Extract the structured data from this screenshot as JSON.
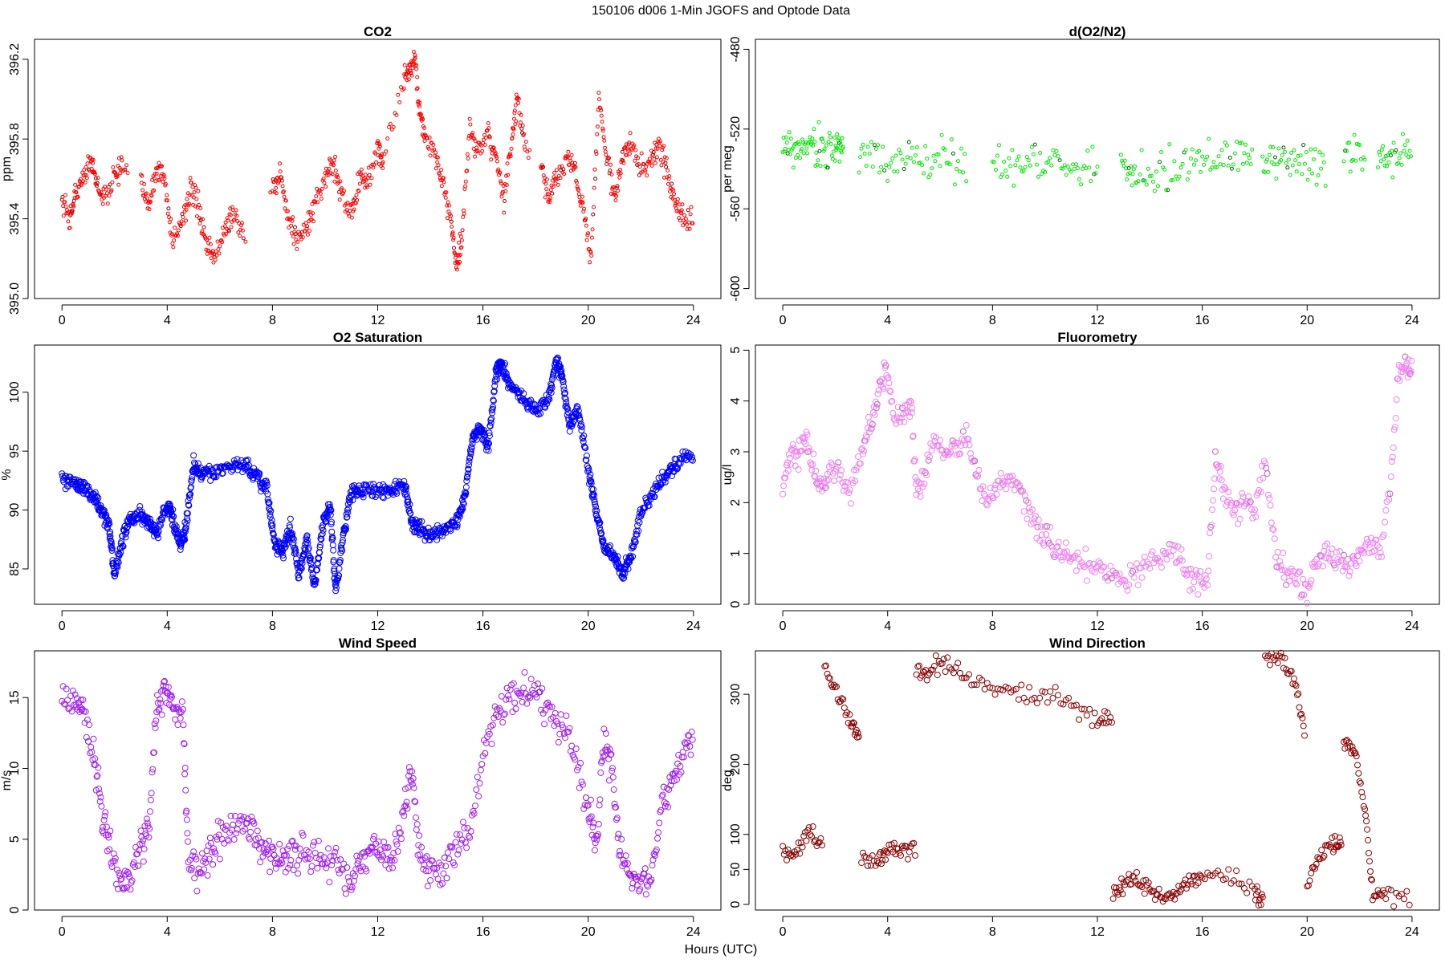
{
  "figure_title": "150106   d006   1-Min  JGOFS and Optode Data",
  "xlabel": "Hours (UTC)",
  "chart_data": [
    {
      "type": "scatter",
      "title": "CO2",
      "ylabel": "ppm",
      "xlim": [
        0,
        24
      ],
      "ylim": [
        395.0,
        396.3
      ],
      "xticks": [
        0,
        4,
        8,
        12,
        16,
        20,
        24
      ],
      "yticks": [
        395.0,
        395.4,
        395.8,
        396.2
      ],
      "ytick_labels": [
        "395.0",
        "395.4",
        "395.8",
        "396.2"
      ],
      "color": "#ff0000",
      "accent_color": "#8b0000",
      "marker_size": 2,
      "noise": 0.03,
      "gaps": [
        [
          2.5,
          3.0
        ],
        [
          7.0,
          7.9
        ],
        [
          17.8,
          18.2
        ]
      ],
      "x": [
        0,
        0.3,
        0.5,
        0.8,
        1.1,
        1.3,
        1.6,
        2.0,
        2.3,
        3.0,
        3.3,
        3.6,
        3.9,
        4.2,
        4.6,
        4.9,
        5.2,
        5.5,
        5.8,
        6.2,
        6.5,
        6.9,
        8.0,
        8.3,
        8.6,
        8.9,
        9.3,
        9.6,
        10.0,
        10.3,
        10.6,
        11.0,
        11.3,
        11.6,
        12.0,
        12.2,
        13.0,
        13.2,
        13.4,
        13.6,
        13.8,
        14.2,
        14.5,
        14.8,
        15.0,
        15.2,
        15.5,
        15.8,
        16.2,
        16.5,
        16.8,
        17.1,
        17.3,
        17.6,
        18.2,
        18.5,
        18.8,
        19.2,
        19.5,
        19.8,
        20.1,
        20.4,
        20.7,
        21.0,
        21.3,
        21.6,
        22.0,
        22.4,
        22.7,
        23.0,
        23.3,
        23.6,
        24.0
      ],
      "y": [
        395.5,
        395.4,
        395.52,
        395.6,
        395.72,
        395.58,
        395.5,
        395.62,
        395.65,
        395.55,
        395.48,
        395.65,
        395.6,
        395.28,
        395.4,
        395.55,
        395.45,
        395.25,
        395.2,
        395.35,
        395.45,
        395.3,
        395.55,
        395.62,
        395.4,
        395.3,
        395.35,
        395.45,
        395.62,
        395.68,
        395.55,
        395.42,
        395.6,
        395.58,
        395.75,
        395.7,
        396.1,
        396.15,
        396.2,
        395.95,
        395.8,
        395.72,
        395.55,
        395.4,
        395.15,
        395.3,
        395.85,
        395.75,
        395.82,
        395.7,
        395.5,
        395.8,
        396.0,
        395.75,
        395.65,
        395.5,
        395.6,
        395.72,
        395.65,
        395.45,
        395.2,
        396.0,
        395.72,
        395.5,
        395.7,
        395.78,
        395.65,
        395.7,
        395.78,
        395.62,
        395.5,
        395.4,
        395.38
      ],
      "points_per_segment": 14
    },
    {
      "type": "scatter",
      "title": "d(O2/N2)",
      "ylabel": "per meg",
      "xlim": [
        0,
        24
      ],
      "ylim": [
        -605,
        -475
      ],
      "xticks": [
        0,
        4,
        8,
        12,
        16,
        20,
        24
      ],
      "yticks": [
        -600,
        -560,
        -520,
        -480
      ],
      "ytick_labels": [
        "-600",
        "-560",
        "-520",
        "-480"
      ],
      "color": "#00e600",
      "accent_color": "#006400",
      "marker_size": 2,
      "noise": 5,
      "gaps": [
        [
          2.3,
          2.9
        ],
        [
          7.0,
          8.0
        ],
        [
          12.0,
          12.9
        ],
        [
          17.9,
          18.3
        ],
        [
          20.7,
          21.4
        ],
        [
          22.2,
          22.7
        ]
      ],
      "x": [
        0,
        0.5,
        1.0,
        1.5,
        2.0,
        2.3,
        3.0,
        4.0,
        5.0,
        6.0,
        7.0,
        8.0,
        9.0,
        10.0,
        11.0,
        12.0,
        12.9,
        13.5,
        14.5,
        15.5,
        16.5,
        17.5,
        18.3,
        19.0,
        19.8,
        20.7,
        21.4,
        22.2,
        22.7,
        23.3,
        24.0
      ],
      "y": [
        -528,
        -530,
        -527,
        -531,
        -529,
        -531,
        -533,
        -536,
        -534,
        -536,
        -537,
        -538,
        -537,
        -536,
        -539,
        -540,
        -541,
        -542,
        -540,
        -538,
        -534,
        -532,
        -534,
        -536,
        -537,
        -538,
        -534,
        -533,
        -532,
        -533,
        -534
      ],
      "points_per_segment": 16
    },
    {
      "type": "scatter",
      "title": "O2 Saturation",
      "ylabel": "%",
      "xlim": [
        0,
        24
      ],
      "ylim": [
        82,
        104
      ],
      "xticks": [
        0,
        4,
        8,
        12,
        16,
        20,
        24
      ],
      "yticks": [
        85,
        90,
        95,
        100
      ],
      "ytick_labels": [
        "85",
        "90",
        "95",
        "100"
      ],
      "color": "#0000ff",
      "accent_color": "#0000aa",
      "marker_size": 3.5,
      "noise": 0.3,
      "gaps": [],
      "x": [
        0,
        0.5,
        0.8,
        1.2,
        1.5,
        1.8,
        2.0,
        2.3,
        2.6,
        3.0,
        3.3,
        3.6,
        4.0,
        4.2,
        4.5,
        4.7,
        5.0,
        5.3,
        5.8,
        6.5,
        7.0,
        7.4,
        7.8,
        8.1,
        8.4,
        8.7,
        9.0,
        9.3,
        9.6,
        9.9,
        10.2,
        10.4,
        10.7,
        11.0,
        11.4,
        12.0,
        12.5,
        13.0,
        13.3,
        13.6,
        14.0,
        14.5,
        15.0,
        15.3,
        15.6,
        15.9,
        16.2,
        16.5,
        16.7,
        17.0,
        17.5,
        18.0,
        18.5,
        18.8,
        19.0,
        19.3,
        19.6,
        20.0,
        20.3,
        20.6,
        21.0,
        21.3,
        21.6,
        22.0,
        22.5,
        23.0,
        23.4,
        24.0
      ],
      "y": [
        92.7,
        92.4,
        91.8,
        91.2,
        90.0,
        88.5,
        84.3,
        87.5,
        89.2,
        89.5,
        89.0,
        88.0,
        90.5,
        89.5,
        87.0,
        88.3,
        93.8,
        93.0,
        93.3,
        93.8,
        93.7,
        92.8,
        91.5,
        87.0,
        86.5,
        88.5,
        84.5,
        87.5,
        83.5,
        88.5,
        90.5,
        83.0,
        88.0,
        91.5,
        91.8,
        91.7,
        91.5,
        92.3,
        89.0,
        88.5,
        87.8,
        88.2,
        88.8,
        91.0,
        96.0,
        97.0,
        95.5,
        101.5,
        102.5,
        100.5,
        99.5,
        98.5,
        99.5,
        102.8,
        101.5,
        97.0,
        98.8,
        93.5,
        90.0,
        86.8,
        86.0,
        84.5,
        86.0,
        89.5,
        91.5,
        93.0,
        94.0,
        94.8
      ],
      "points_per_segment": 22
    },
    {
      "type": "scatter",
      "title": "Fluorometry",
      "ylabel": "ug/l",
      "xlim": [
        0,
        24
      ],
      "ylim": [
        0,
        5.1
      ],
      "xticks": [
        0,
        4,
        8,
        12,
        16,
        20,
        24
      ],
      "yticks": [
        0,
        1,
        2,
        3,
        4,
        5
      ],
      "ytick_labels": [
        "0",
        "1",
        "2",
        "3",
        "4",
        "5"
      ],
      "color": "#ee82ee",
      "accent_color": "#c060c0",
      "marker_size": 3.5,
      "noise": 0.12,
      "gaps": [],
      "x": [
        0,
        0.3,
        0.6,
        0.9,
        1.2,
        1.5,
        1.8,
        2.2,
        2.6,
        3.0,
        3.3,
        3.6,
        3.9,
        4.2,
        4.6,
        4.9,
        5.1,
        5.4,
        5.8,
        6.2,
        6.6,
        7.0,
        7.4,
        7.8,
        8.2,
        8.6,
        9.0,
        9.4,
        9.8,
        10.2,
        10.6,
        11.0,
        11.5,
        12.0,
        12.5,
        13.0,
        13.5,
        14.0,
        14.5,
        15.0,
        15.4,
        15.8,
        16.2,
        16.5,
        16.8,
        17.2,
        17.6,
        18.0,
        18.4,
        18.8,
        19.2,
        19.6,
        20.0,
        20.4,
        20.8,
        21.2,
        21.6,
        22.0,
        22.4,
        22.8,
        23.2,
        23.5,
        23.8,
        24.0
      ],
      "y": [
        2.4,
        2.9,
        2.9,
        3.3,
        2.6,
        2.2,
        2.7,
        2.5,
        2.2,
        3.0,
        3.5,
        4.0,
        4.6,
        3.8,
        3.7,
        4.0,
        2.2,
        2.5,
        3.3,
        3.0,
        3.1,
        3.3,
        2.6,
        2.0,
        2.3,
        2.4,
        2.3,
        1.8,
        1.5,
        1.2,
        1.0,
        0.9,
        0.8,
        0.8,
        0.6,
        0.5,
        0.6,
        0.8,
        1.0,
        1.1,
        0.6,
        0.4,
        0.5,
        2.8,
        2.3,
        1.8,
        2.0,
        1.8,
        2.9,
        1.0,
        0.6,
        0.5,
        0.3,
        0.8,
        1.0,
        0.9,
        0.7,
        1.0,
        1.2,
        1.0,
        2.5,
        4.6,
        4.6,
        4.5
      ],
      "points_per_segment": 10
    },
    {
      "type": "scatter",
      "title": "Wind Speed",
      "ylabel": "m/s",
      "xlim": [
        0,
        24
      ],
      "ylim": [
        0,
        18.3
      ],
      "xticks": [
        0,
        4,
        8,
        12,
        16,
        20,
        24
      ],
      "yticks": [
        0,
        5,
        10,
        15
      ],
      "ytick_labels": [
        "0",
        "5",
        "10",
        "15"
      ],
      "color": "#a020f0",
      "accent_color": "#7a18b8",
      "marker_size": 3.5,
      "noise": 0.6,
      "gaps": [],
      "x": [
        0,
        0.5,
        0.8,
        1.2,
        1.5,
        1.8,
        2.2,
        2.6,
        3.0,
        3.3,
        3.6,
        3.9,
        4.2,
        4.6,
        4.8,
        5.2,
        5.6,
        6.0,
        6.5,
        7.0,
        7.4,
        7.8,
        8.2,
        8.6,
        9.0,
        9.5,
        10.0,
        10.5,
        11.0,
        11.4,
        11.8,
        12.2,
        12.6,
        13.0,
        13.3,
        13.6,
        14.0,
        14.5,
        15.0,
        15.5,
        16.0,
        16.5,
        17.0,
        17.5,
        18.0,
        18.5,
        19.0,
        19.5,
        20.0,
        20.3,
        20.6,
        20.9,
        21.2,
        21.6,
        22.0,
        22.4,
        22.8,
        23.2,
        23.6,
        24.0
      ],
      "y": [
        15.0,
        14.5,
        14.0,
        11.0,
        7.5,
        4.5,
        2.0,
        2.5,
        4.5,
        6.0,
        14.0,
        15.5,
        14.5,
        13.5,
        4.0,
        2.5,
        4.0,
        5.0,
        6.0,
        6.5,
        5.0,
        4.0,
        3.5,
        4.0,
        4.0,
        4.0,
        3.5,
        3.0,
        2.0,
        3.5,
        4.5,
        4.0,
        3.5,
        7.0,
        10.0,
        3.5,
        3.0,
        3.0,
        4.5,
        5.5,
        11.0,
        14.0,
        15.0,
        15.0,
        15.5,
        14.0,
        12.5,
        11.0,
        7.0,
        4.5,
        12.0,
        10.0,
        4.0,
        2.5,
        2.0,
        2.5,
        7.5,
        9.5,
        11.0,
        12.5
      ],
      "points_per_segment": 12
    },
    {
      "type": "scatter",
      "title": "Wind Direction",
      "ylabel": "deg",
      "xlim": [
        0,
        24
      ],
      "ylim": [
        -8,
        362
      ],
      "xticks": [
        0,
        4,
        8,
        12,
        16,
        20,
        24
      ],
      "yticks": [
        0,
        50,
        100,
        200,
        300
      ],
      "ytick_labels": [
        "0",
        "50",
        "100",
        "200",
        "300"
      ],
      "color": "#8b0000",
      "accent_color": "#5a0000",
      "marker_size": 3.5,
      "noise": 6,
      "gaps": [
        [
          1.5,
          1.6
        ],
        [
          2.9,
          3.0
        ],
        [
          5.05,
          5.1
        ],
        [
          12.55,
          12.6
        ],
        [
          18.3,
          18.4
        ],
        [
          19.9,
          20.0
        ],
        [
          21.3,
          21.4
        ]
      ],
      "x": [
        0,
        0.5,
        1.0,
        1.5,
        1.6,
        2.1,
        2.6,
        2.9,
        3.0,
        3.6,
        4.0,
        4.5,
        5.05,
        5.1,
        5.6,
        6.2,
        7.0,
        8.0,
        9.0,
        10.0,
        11.0,
        12.0,
        12.55,
        12.6,
        13.0,
        13.5,
        14.0,
        14.5,
        15.0,
        15.5,
        16.0,
        17.0,
        18.0,
        18.3,
        18.4,
        19.0,
        19.5,
        19.9,
        20.0,
        20.5,
        21.0,
        21.3,
        21.4,
        21.8,
        22.2,
        22.5,
        23.0,
        24.0
      ],
      "y": [
        70,
        72,
        110,
        80,
        340,
        300,
        260,
        240,
        70,
        60,
        78,
        80,
        80,
        330,
        335,
        345,
        320,
        310,
        300,
        300,
        290,
        260,
        265,
        15,
        30,
        40,
        20,
        10,
        15,
        35,
        40,
        40,
        20,
        5,
        355,
        350,
        320,
        250,
        30,
        70,
        85,
        85,
        230,
        220,
        130,
        20,
        15,
        10
      ],
      "points_per_segment": 10
    }
  ]
}
